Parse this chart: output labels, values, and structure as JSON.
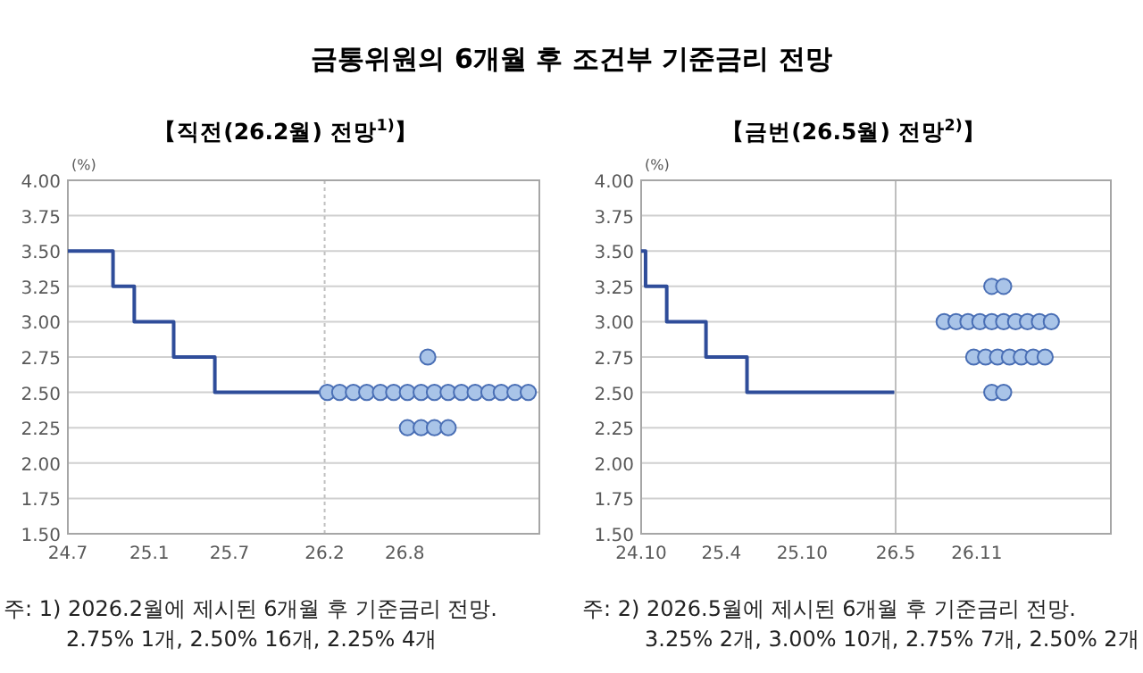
{
  "chart_data": [
    {
      "type": "line",
      "title": "금통위원의 6개월 후 조건부 기준금리 전망",
      "subtitle": "【직전(26.2월)  전망$^{1)}$】",
      "ylabel": "(%)",
      "grid": "y",
      "xlim": [
        "2024-07-01",
        "2027-06-01"
      ],
      "xticks": [
        {
          "value": "2024-07",
          "label": "24.7"
        },
        {
          "value": "2025-01",
          "label": "25.1"
        },
        {
          "value": "2025-07",
          "label": "25.7"
        },
        {
          "value": "2026-02",
          "label": "26.2"
        },
        {
          "value": "2026-08",
          "label": "26.8"
        }
      ],
      "ylim": [
        1.5,
        4
      ],
      "yticks": [
        {
          "value": 1.5,
          "label": "1.50"
        },
        {
          "value": 1.75,
          "label": "1.75"
        },
        {
          "value": 2,
          "label": "2.00"
        },
        {
          "value": 2.25,
          "label": "2.25"
        },
        {
          "value": 2.5,
          "label": "2.50"
        },
        {
          "value": 2.75,
          "label": "2.75"
        },
        {
          "value": 3,
          "label": "3.00"
        },
        {
          "value": 3.25,
          "label": "3.25"
        },
        {
          "value": 3.5,
          "label": "3.50"
        },
        {
          "value": 3.75,
          "label": "3.75"
        },
        {
          "value": 4,
          "label": "4.00"
        }
      ],
      "ref_lines": [
        {
          "axis": "x",
          "value": "2026-02",
          "color": "#bfbfbf",
          "line_style": "dotted"
        }
      ],
      "series": [
        {
          "type": "step",
          "color": "#2f4d9a",
          "x": [
            "2024-07-01",
            "2024-10-11",
            "2024-11-28",
            "2025-02-25",
            "2025-05-29",
            "2026-01-25"
          ],
          "values": [
            3.5,
            3.25,
            3.0,
            2.75,
            2.5,
            2.5
          ]
        },
        {
          "type": "scatter",
          "marker": "circle",
          "color": "#a9c4e8",
          "x": [
            "2026-09-22",
            "2026-02-07",
            "2026-03-07",
            "2026-04-07",
            "2026-05-07",
            "2026-06-07",
            "2026-07-07",
            "2026-08-07",
            "2026-09-07",
            "2026-10-07",
            "2026-11-07",
            "2026-12-07",
            "2027-01-07",
            "2027-02-07",
            "2027-03-07",
            "2027-04-07",
            "2027-05-07",
            "2026-08-07",
            "2026-09-07",
            "2026-10-07",
            "2026-11-07"
          ],
          "values": [
            2.75,
            2.5,
            2.5,
            2.5,
            2.5,
            2.5,
            2.5,
            2.5,
            2.5,
            2.5,
            2.5,
            2.5,
            2.5,
            2.5,
            2.5,
            2.5,
            2.5,
            2.25,
            2.25,
            2.25,
            2.25
          ]
        }
      ],
      "annotations": [
        "주: 1) 2026.2월에 제시된 6개월 후 기준금리 전망.",
        "2.75% 1개,  2.50% 16개,  2.25% 4개"
      ]
    },
    {
      "type": "line",
      "subtitle": "【금번(26.5월)  전망$^{2)}$】",
      "ylabel": "(%)",
      "grid": "y",
      "xlim": [
        "2024-10-01",
        "2027-09-01"
      ],
      "xticks": [
        {
          "value": "2024-10",
          "label": "24.10"
        },
        {
          "value": "2025-04",
          "label": "25.4"
        },
        {
          "value": "2025-10",
          "label": "25.10"
        },
        {
          "value": "2026-05",
          "label": "26.5"
        },
        {
          "value": "2026-11",
          "label": "26.11"
        }
      ],
      "ylim": [
        1.5,
        4
      ],
      "yticks": [
        {
          "value": 1.5,
          "label": "1.50"
        },
        {
          "value": 1.75,
          "label": "1.75"
        },
        {
          "value": 2,
          "label": "2.00"
        },
        {
          "value": 2.25,
          "label": "2.25"
        },
        {
          "value": 2.5,
          "label": "2.50"
        },
        {
          "value": 2.75,
          "label": "2.75"
        },
        {
          "value": 3,
          "label": "3.00"
        },
        {
          "value": 3.25,
          "label": "3.25"
        },
        {
          "value": 3.5,
          "label": "3.50"
        },
        {
          "value": 3.75,
          "label": "3.75"
        },
        {
          "value": 4,
          "label": "4.00"
        }
      ],
      "ref_lines": [
        {
          "axis": "x",
          "value": "2026-05",
          "color": "#bfbfbf",
          "line_style": "solid"
        }
      ],
      "series": [
        {
          "type": "step",
          "color": "#2f4d9a",
          "x": [
            "2024-10-01",
            "2024-10-11",
            "2024-11-28",
            "2025-02-25",
            "2025-05-29",
            "2026-04-28"
          ],
          "values": [
            3.5,
            3.25,
            3.0,
            2.75,
            2.5,
            2.5
          ]
        },
        {
          "type": "scatter",
          "marker": "circle",
          "color": "#a9c4e8",
          "x": [
            "2026-12-05",
            "2027-01-01",
            "2026-08-19",
            "2026-09-15",
            "2026-10-12",
            "2026-11-08",
            "2026-12-05",
            "2027-01-01",
            "2027-01-28",
            "2027-02-24",
            "2027-03-23",
            "2027-04-19",
            "2026-10-25",
            "2026-11-21",
            "2026-12-18",
            "2027-01-14",
            "2027-02-10",
            "2027-03-09",
            "2027-04-05",
            "2026-12-05",
            "2027-01-01"
          ],
          "values": [
            3.25,
            3.25,
            3,
            3,
            3,
            3,
            3,
            3,
            3,
            3,
            3,
            3,
            2.75,
            2.75,
            2.75,
            2.75,
            2.75,
            2.75,
            2.75,
            2.5,
            2.5
          ]
        }
      ],
      "annotations": [
        "주: 2) 2026.5월에 제시된 6개월 후 기준금리 전망.",
        "3.25% 2개,  3.00% 10개,  2.75% 7개,  2.50% 2개"
      ]
    }
  ]
}
